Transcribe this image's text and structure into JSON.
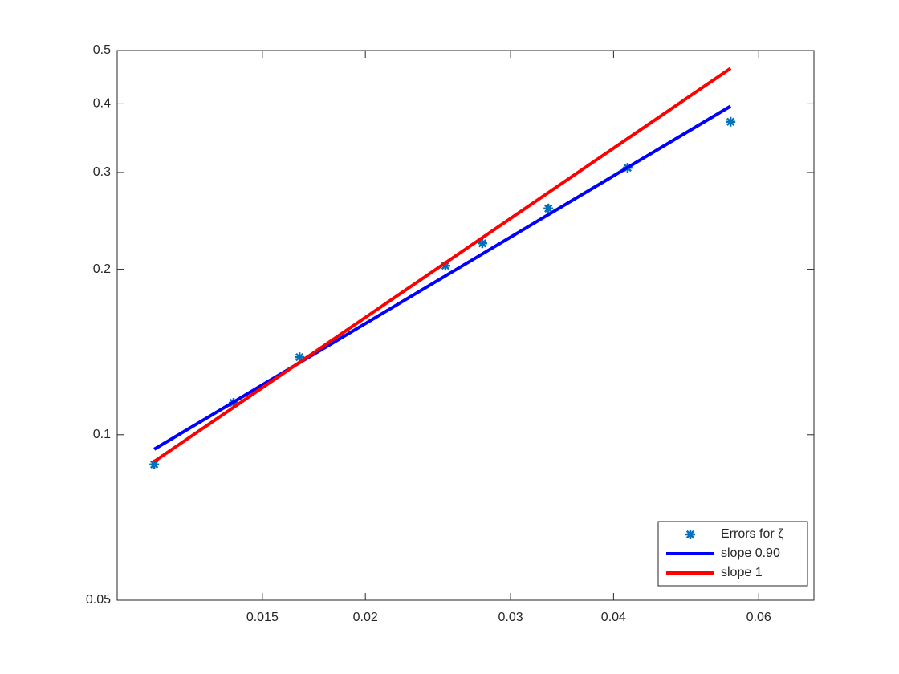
{
  "chart_data": {
    "type": "line",
    "xscale": "log",
    "yscale": "log",
    "xlim": [
      0.01,
      0.07
    ],
    "xticks": [
      0.015,
      0.02,
      0.03,
      0.04,
      0.06
    ],
    "ylim": [
      0.05,
      0.5
    ],
    "yticks": [
      0.05,
      0.1,
      0.2,
      0.3,
      0.4,
      0.5
    ],
    "legend": "southeast",
    "series": [
      {
        "name": "Errors for ζ",
        "color": "#0072bd",
        "style": "markers",
        "x": [
          0.01109,
          0.01384,
          0.01664,
          0.02501,
          0.02773,
          0.03334,
          0.0416,
          0.05546
        ],
        "values": [
          0.0883,
          0.1143,
          0.1384,
          0.203,
          0.223,
          0.258,
          0.306,
          0.371
        ]
      },
      {
        "name": "slope 0.90",
        "color": "#0000ff",
        "style": "line",
        "x": [
          0.01109,
          0.05546
        ],
        "values": [
          0.0941,
          0.396
        ]
      },
      {
        "name": "slope 1",
        "color": "#ff0000",
        "style": "line",
        "x": [
          0.01109,
          0.05546
        ],
        "values": [
          0.0894,
          0.464
        ]
      }
    ]
  }
}
